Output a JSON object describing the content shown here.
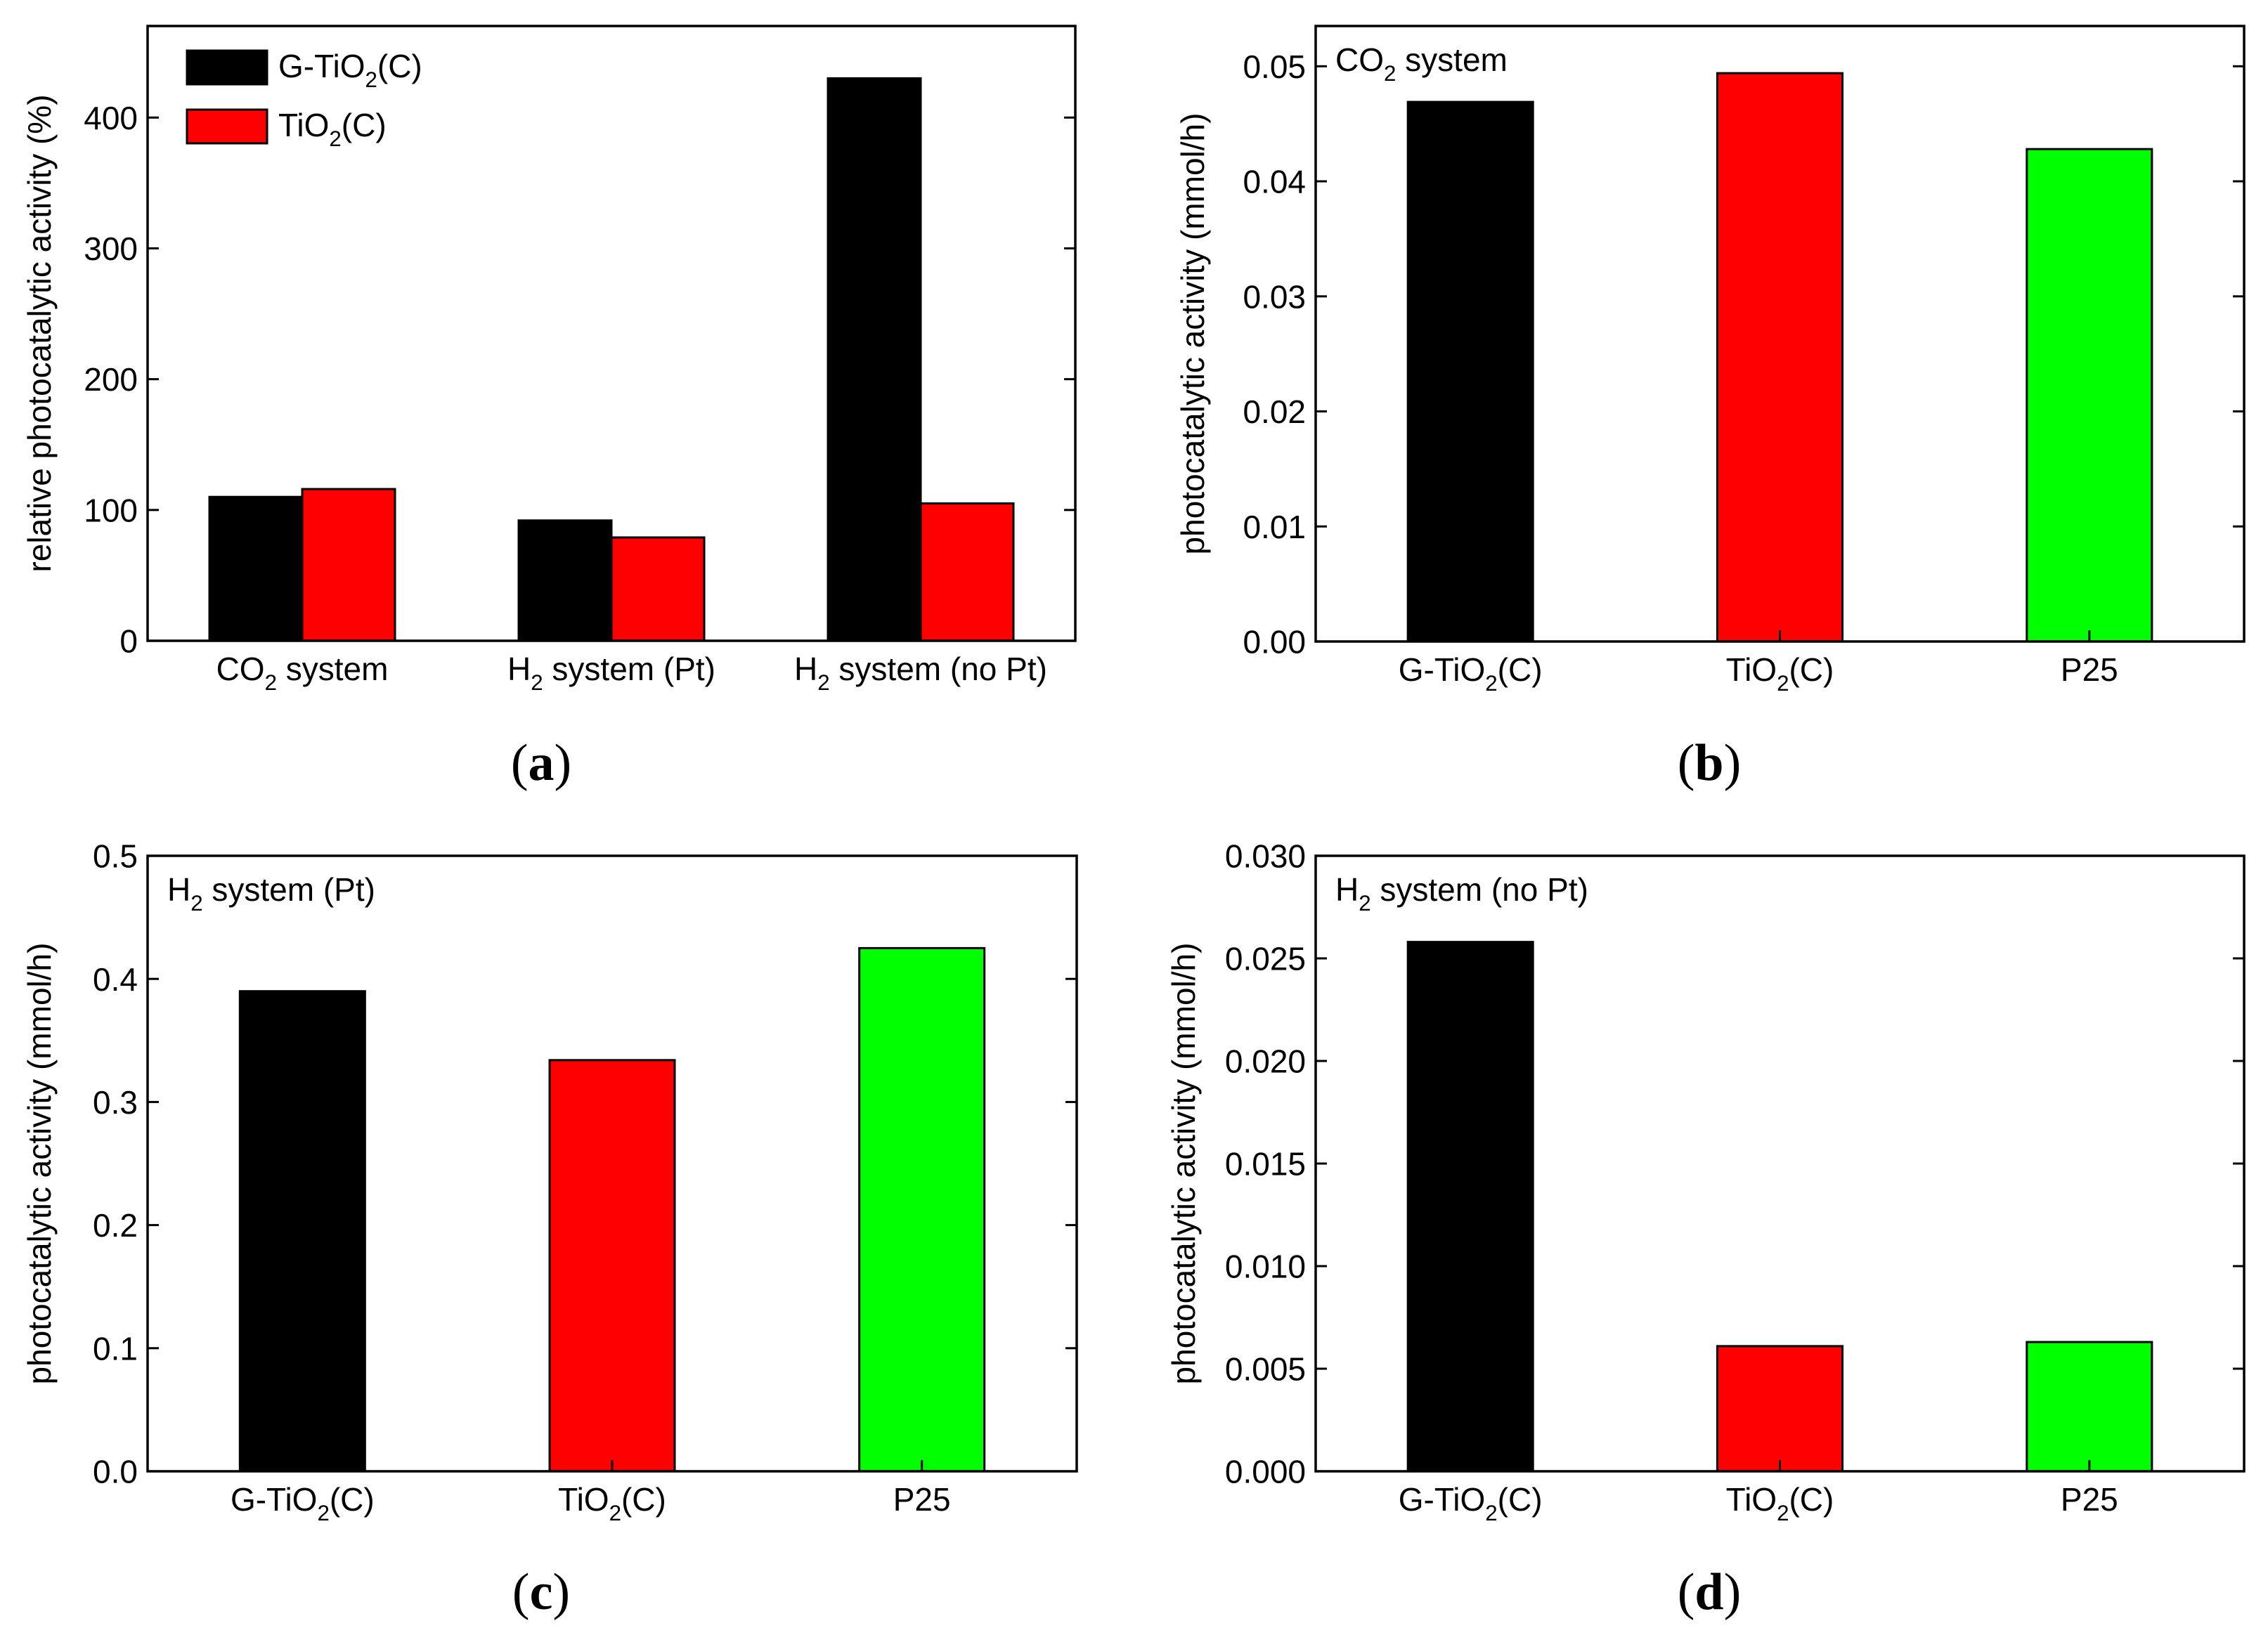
{
  "chart_data": [
    {
      "panel": "a",
      "type": "bar",
      "caption": {
        "open": "(",
        "letter": "a",
        "close": ")"
      },
      "ylabel": "relative photocatalytic activity (%)",
      "ylim": [
        0,
        470
      ],
      "yticks": [
        "0",
        "100",
        "200",
        "300",
        "400"
      ],
      "categories": [
        {
          "base": "CO",
          "sub": "2",
          "rest": " system"
        },
        {
          "base": "H",
          "sub": "2",
          "rest": " system (Pt)"
        },
        {
          "base": "H",
          "sub": "2",
          "rest": " system (no Pt)"
        }
      ],
      "series": [
        {
          "name": {
            "base": "G-TiO",
            "sub": "2",
            "rest": "(C)"
          },
          "color": "#000000",
          "values": [
            110,
            92,
            430
          ]
        },
        {
          "name": {
            "base": "TiO",
            "sub": "2",
            "rest": "(C)"
          },
          "color": "#ff0000",
          "values": [
            116,
            79,
            105
          ]
        }
      ],
      "legend": "top-left"
    },
    {
      "panel": "b",
      "type": "bar",
      "caption": {
        "open": "(",
        "letter": "b",
        "close": ")"
      },
      "annotation": {
        "base": "CO",
        "sub": "2",
        "rest": " system"
      },
      "ylabel": "photocatalytic activity (mmol/h)",
      "ylim": [
        0,
        0.0535
      ],
      "yticks": [
        "0.00",
        "0.01",
        "0.02",
        "0.03",
        "0.04",
        "0.05"
      ],
      "categories": [
        {
          "base": "G-TiO",
          "sub": "2",
          "rest": "(C)"
        },
        {
          "base": "TiO",
          "sub": "2",
          "rest": "(C)"
        },
        {
          "base": "P25",
          "sub": "",
          "rest": ""
        }
      ],
      "colors": [
        "#000000",
        "#ff0000",
        "#00ff00"
      ],
      "values": [
        0.0469,
        0.0494,
        0.0428
      ]
    },
    {
      "panel": "c",
      "type": "bar",
      "caption": {
        "open": "(",
        "letter": "c",
        "close": ")"
      },
      "annotation": {
        "base": "H",
        "sub": "2",
        "rest": " system (Pt)"
      },
      "ylabel": "photocatalytic activity (mmol/h)",
      "ylim": [
        0,
        0.5
      ],
      "yticks": [
        "0.0",
        "0.1",
        "0.2",
        "0.3",
        "0.4",
        "0.5"
      ],
      "categories": [
        {
          "base": "G-TiO",
          "sub": "2",
          "rest": "(C)"
        },
        {
          "base": "TiO",
          "sub": "2",
          "rest": "(C)"
        },
        {
          "base": "P25",
          "sub": "",
          "rest": ""
        }
      ],
      "colors": [
        "#000000",
        "#ff0000",
        "#00ff00"
      ],
      "values": [
        0.39,
        0.334,
        0.425
      ]
    },
    {
      "panel": "d",
      "type": "bar",
      "caption": {
        "open": "(",
        "letter": "d",
        "close": ")"
      },
      "annotation": {
        "base": "H",
        "sub": "2",
        "rest": " system (no Pt)"
      },
      "ylabel": "photocatalytic activity (mmol/h)",
      "ylim": [
        0,
        0.03
      ],
      "yticks": [
        "0.000",
        "0.005",
        "0.010",
        "0.015",
        "0.020",
        "0.025",
        "0.030"
      ],
      "categories": [
        {
          "base": "G-TiO",
          "sub": "2",
          "rest": "(C)"
        },
        {
          "base": "TiO",
          "sub": "2",
          "rest": "(C)"
        },
        {
          "base": "P25",
          "sub": "",
          "rest": ""
        }
      ],
      "colors": [
        "#000000",
        "#ff0000",
        "#00ff00"
      ],
      "values": [
        0.0258,
        0.0061,
        0.0063
      ]
    }
  ]
}
